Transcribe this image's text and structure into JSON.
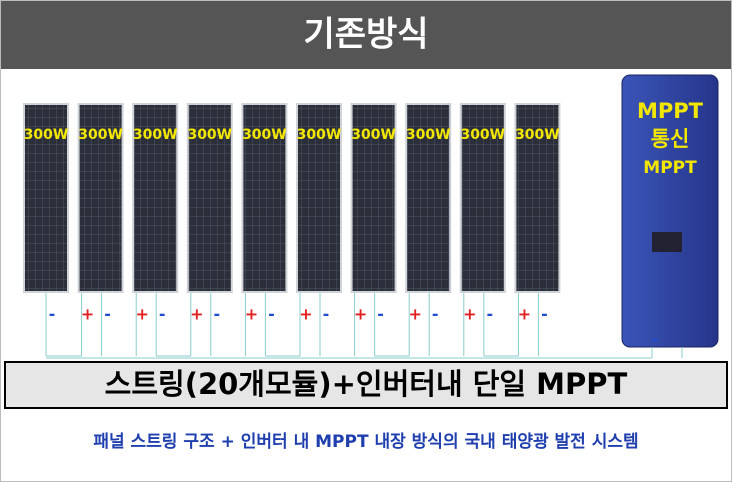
{
  "header": {
    "title": "기존방식"
  },
  "panels": [
    {
      "label": "300W",
      "terminals": [
        "-"
      ]
    },
    {
      "label": "300W",
      "terminals": [
        "+",
        "-"
      ]
    },
    {
      "label": "300W",
      "terminals": [
        "+",
        "-"
      ]
    },
    {
      "label": "300W",
      "terminals": [
        "+",
        "-"
      ]
    },
    {
      "label": "300W",
      "terminals": [
        "+",
        "-"
      ]
    },
    {
      "label": "300W",
      "terminals": [
        "+",
        "-"
      ]
    },
    {
      "label": "300W",
      "terminals": [
        "+",
        "-"
      ]
    },
    {
      "label": "300W",
      "terminals": [
        "+",
        "-"
      ]
    },
    {
      "label": "300W",
      "terminals": [
        "+",
        "-"
      ]
    },
    {
      "label": "300W",
      "terminals": [
        "+",
        "-"
      ]
    }
  ],
  "inverter": {
    "lines": [
      "MPPT",
      "통신",
      "MPPT"
    ],
    "terminal": "-"
  },
  "banner": "스트링(20개모듈)+인버터내 단일 MPPT",
  "caption": "패널 스트링 구조 + 인버터 내 MPPT 내장 방식의 국내 태양광 발전 시스템"
}
